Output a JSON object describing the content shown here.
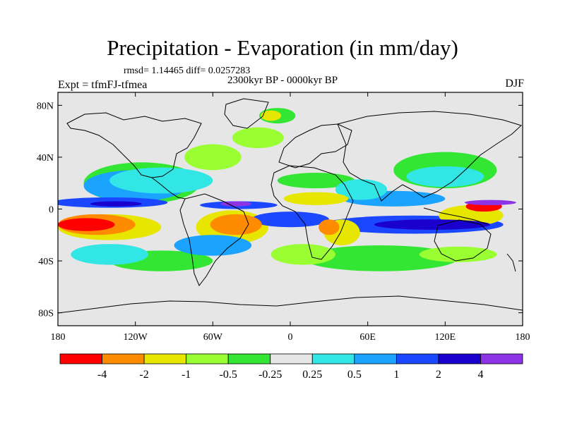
{
  "chart_data": {
    "type": "heatmap",
    "title": "Precipitation - Evaporation (in mm/day)",
    "stats_line": "rmsd= 1.14465 diff= 0.0257283",
    "experiment": "Expt = tfmFJ-tfmea",
    "period": "2300kyr BP - 0000kyr BP",
    "season": "DJF",
    "x_ticks": [
      "180",
      "120W",
      "60W",
      "0",
      "60E",
      "120E",
      "180"
    ],
    "y_ticks": [
      "80N",
      "40N",
      "0",
      "40S",
      "80S"
    ],
    "x_range": [
      -180,
      180
    ],
    "y_range": [
      -90,
      90
    ],
    "colorbar": {
      "labels": [
        "-4",
        "-2",
        "-1",
        "-0.5",
        "-0.25",
        "0.25",
        "0.5",
        "1",
        "2",
        "4"
      ],
      "colors": [
        "#ff0000",
        "#ff8c00",
        "#e6e600",
        "#99ff33",
        "#33e633",
        "#e6e6e6",
        "#33e6e6",
        "#1aa3ff",
        "#1a47ff",
        "#1a00cc",
        "#8c33e6"
      ]
    },
    "fields": [
      {
        "category": "dry",
        "color": "#ff0000",
        "lon": -158,
        "lat": -12,
        "rx": 22,
        "ry": 5
      },
      {
        "category": "dry",
        "color": "#ff8c00",
        "lon": -150,
        "lat": -12,
        "rx": 30,
        "ry": 8
      },
      {
        "category": "dry",
        "color": "#ff8c00",
        "lon": -42,
        "lat": -12,
        "rx": 20,
        "ry": 8
      },
      {
        "category": "dry",
        "color": "#ff8c00",
        "lon": 30,
        "lat": -14,
        "rx": 8,
        "ry": 6
      },
      {
        "category": "dry",
        "color": "#ff0000",
        "lon": 150,
        "lat": 2,
        "rx": 14,
        "ry": 4
      },
      {
        "category": "dry",
        "color": "#e6e600",
        "lon": -45,
        "lat": -14,
        "rx": 28,
        "ry": 13
      },
      {
        "category": "dry",
        "color": "#e6e600",
        "lon": 40,
        "lat": -18,
        "rx": 14,
        "ry": 10
      },
      {
        "category": "dry",
        "color": "#e6e600",
        "lon": 20,
        "lat": 8,
        "rx": 25,
        "ry": 5
      },
      {
        "category": "dry",
        "color": "#e6e600",
        "lon": 140,
        "lat": -5,
        "rx": 25,
        "ry": 8
      },
      {
        "category": "dry",
        "color": "#e6e600",
        "lon": -140,
        "lat": -14,
        "rx": 40,
        "ry": 10
      },
      {
        "category": "wet",
        "color": "#1a47ff",
        "lon": -140,
        "lat": 5,
        "rx": 45,
        "ry": 4
      },
      {
        "category": "wet",
        "color": "#1a00cc",
        "lon": -135,
        "lat": 4,
        "rx": 20,
        "ry": 2
      },
      {
        "category": "wet",
        "color": "#1a47ff",
        "lon": -40,
        "lat": 3,
        "rx": 30,
        "ry": 3
      },
      {
        "category": "wet",
        "color": "#1a47ff",
        "lon": 0,
        "lat": -8,
        "rx": 30,
        "ry": 6
      },
      {
        "category": "wet",
        "color": "#1a47ff",
        "lon": 95,
        "lat": -12,
        "rx": 70,
        "ry": 7
      },
      {
        "category": "wet",
        "color": "#1a00cc",
        "lon": 110,
        "lat": -12,
        "rx": 45,
        "ry": 4
      },
      {
        "category": "wet",
        "color": "#8c33e6",
        "lon": 155,
        "lat": 5,
        "rx": 20,
        "ry": 2
      },
      {
        "category": "wet",
        "color": "#8c33e6",
        "lon": -42,
        "lat": 4,
        "rx": 12,
        "ry": 2
      },
      {
        "category": "wet",
        "color": "#1aa3ff",
        "lon": -120,
        "lat": 18,
        "rx": 40,
        "ry": 12
      },
      {
        "category": "wet",
        "color": "#1aa3ff",
        "lon": -60,
        "lat": -28,
        "rx": 30,
        "ry": 8
      },
      {
        "category": "wet",
        "color": "#1aa3ff",
        "lon": 80,
        "lat": 8,
        "rx": 40,
        "ry": 6
      },
      {
        "category": "wet",
        "color": "#33e6e6",
        "lon": -140,
        "lat": -35,
        "rx": 30,
        "ry": 8
      },
      {
        "category": "wet",
        "color": "#33e6e6",
        "lon": -100,
        "lat": 22,
        "rx": 40,
        "ry": 10
      },
      {
        "category": "wet",
        "color": "#33e6e6",
        "lon": 55,
        "lat": 15,
        "rx": 20,
        "ry": 8
      },
      {
        "category": "wet",
        "color": "#33e6e6",
        "lon": 120,
        "lat": 25,
        "rx": 30,
        "ry": 8
      },
      {
        "category": "moist",
        "color": "#33e633",
        "lon": -115,
        "lat": 20,
        "rx": 45,
        "ry": 16
      },
      {
        "category": "moist",
        "color": "#33e633",
        "lon": -100,
        "lat": -40,
        "rx": 40,
        "ry": 8
      },
      {
        "category": "moist",
        "color": "#33e633",
        "lon": 20,
        "lat": 22,
        "rx": 30,
        "ry": 6
      },
      {
        "category": "moist",
        "color": "#33e633",
        "lon": 120,
        "lat": 30,
        "rx": 40,
        "ry": 14
      },
      {
        "category": "moist",
        "color": "#33e633",
        "lon": 70,
        "lat": -38,
        "rx": 60,
        "ry": 10
      },
      {
        "category": "moist",
        "color": "#99ff33",
        "lon": -60,
        "lat": 40,
        "rx": 22,
        "ry": 10
      },
      {
        "category": "moist",
        "color": "#99ff33",
        "lon": -25,
        "lat": 55,
        "rx": 20,
        "ry": 8
      },
      {
        "category": "moist",
        "color": "#99ff33",
        "lon": 10,
        "lat": -35,
        "rx": 25,
        "ry": 8
      },
      {
        "category": "moist",
        "color": "#99ff33",
        "lon": 130,
        "lat": -35,
        "rx": 30,
        "ry": 6
      },
      {
        "category": "moist",
        "color": "#e6e600",
        "lon": -15,
        "lat": 72,
        "rx": 8,
        "ry": 4
      },
      {
        "category": "moist",
        "color": "#33e633",
        "lon": -10,
        "lat": 72,
        "rx": 14,
        "ry": 6
      }
    ]
  }
}
